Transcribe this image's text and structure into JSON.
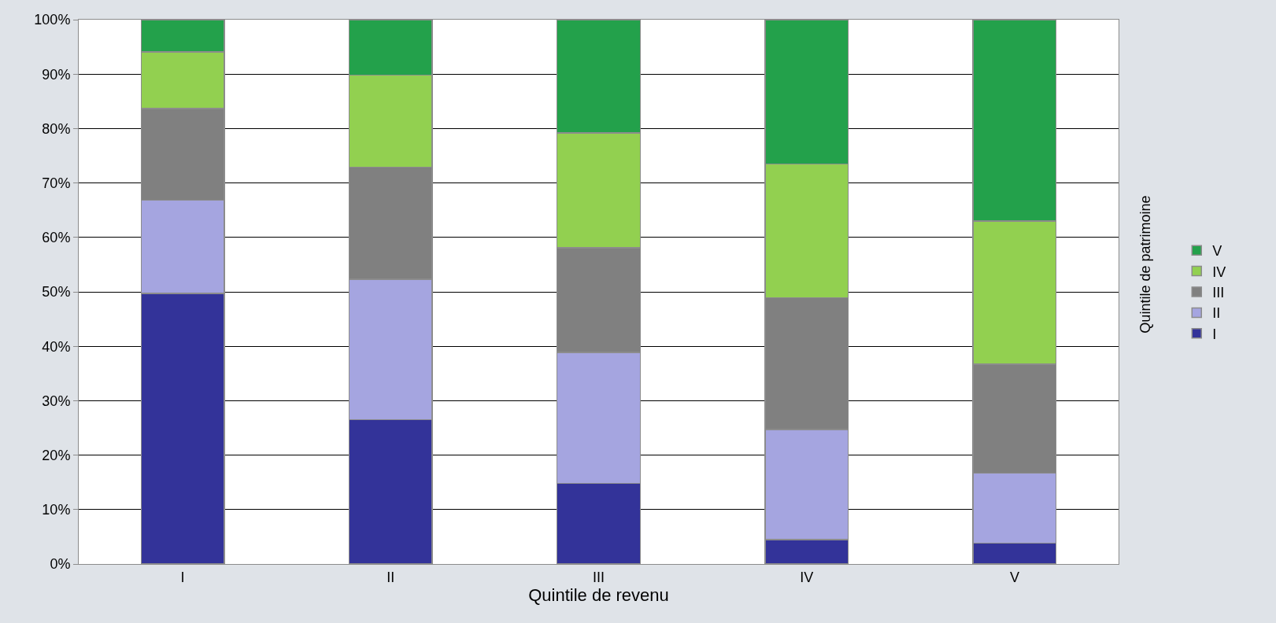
{
  "chart_data": {
    "type": "bar",
    "stacked": true,
    "xlabel": "Quintile de revenu",
    "legend_title": "Quintile de patrimoine",
    "categories": [
      "I",
      "II",
      "III",
      "IV",
      "V"
    ],
    "series": [
      {
        "name": "I",
        "color": "#333399",
        "values": [
          49.7,
          26.5,
          14.8,
          4.5,
          3.8
        ]
      },
      {
        "name": "II",
        "color": "#a5a5e0",
        "values": [
          17.1,
          25.8,
          24.1,
          20.2,
          12.9
        ]
      },
      {
        "name": "III",
        "color": "#808080",
        "values": [
          16.9,
          20.6,
          19.2,
          24.2,
          20.0
        ]
      },
      {
        "name": "IV",
        "color": "#92d050",
        "values": [
          10.4,
          16.9,
          21.1,
          24.6,
          26.3
        ]
      },
      {
        "name": "V",
        "color": "#23a14b",
        "values": [
          5.9,
          10.2,
          20.8,
          26.5,
          37.0
        ]
      }
    ],
    "ylim": [
      0,
      100
    ],
    "yticks": [
      {
        "value": 0,
        "label": "0%"
      },
      {
        "value": 10,
        "label": "10%"
      },
      {
        "value": 20,
        "label": "20%"
      },
      {
        "value": 30,
        "label": "30%"
      },
      {
        "value": 40,
        "label": "40%"
      },
      {
        "value": 50,
        "label": "50%"
      },
      {
        "value": 60,
        "label": "60%"
      },
      {
        "value": 70,
        "label": "70%"
      },
      {
        "value": 80,
        "label": "80%"
      },
      {
        "value": 90,
        "label": "90%"
      },
      {
        "value": 100,
        "label": "100%"
      }
    ],
    "grid": "y",
    "legend": "right"
  }
}
